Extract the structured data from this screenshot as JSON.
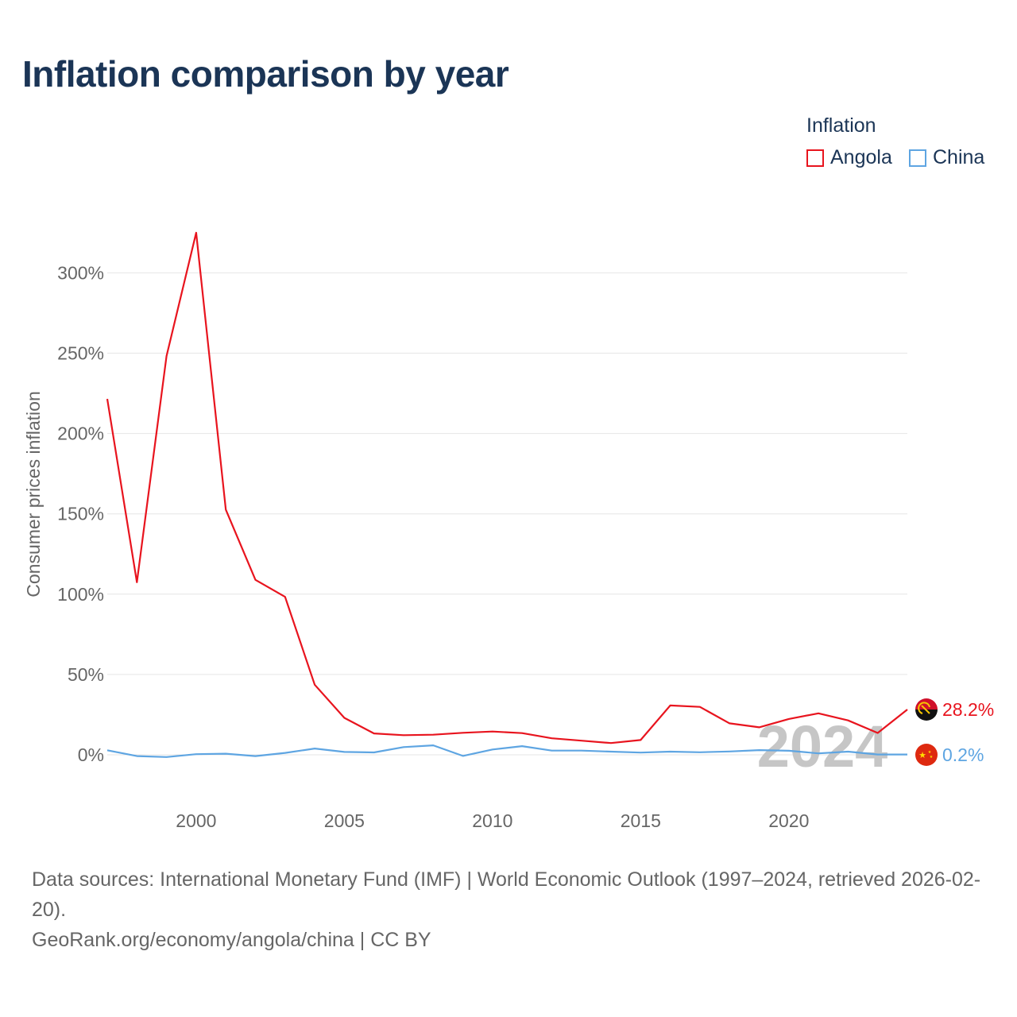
{
  "title": "Inflation comparison by year",
  "legend": {
    "title": "Inflation",
    "items": [
      {
        "label": "Angola",
        "color": "#e8141e"
      },
      {
        "label": "China",
        "color": "#5ea5e2"
      }
    ]
  },
  "footer": {
    "sources": "Data sources: International Monetary Fund (IMF) | World Economic Outlook (1997–2024, retrieved 2026-02-20).",
    "credit": "GeoRank.org/economy/angola/china | CC BY"
  },
  "chart_data": {
    "type": "line",
    "ylabel": "Consumer prices inflation",
    "xlabel": "",
    "year_watermark": "2024",
    "xlim": [
      1997,
      2024
    ],
    "ylim": [
      -25,
      325
    ],
    "x_ticks": [
      2000,
      2005,
      2010,
      2015,
      2020
    ],
    "y_ticks": [
      0,
      50,
      100,
      150,
      200,
      250,
      300
    ],
    "y_tick_labels": [
      "0%",
      "50%",
      "100%",
      "150%",
      "200%",
      "250%",
      "300%"
    ],
    "grid": true,
    "x": [
      1997,
      1998,
      1999,
      2000,
      2001,
      2002,
      2003,
      2004,
      2005,
      2006,
      2007,
      2008,
      2009,
      2010,
      2011,
      2012,
      2013,
      2014,
      2015,
      2016,
      2017,
      2018,
      2019,
      2020,
      2021,
      2022,
      2023,
      2024
    ],
    "series": [
      {
        "name": "Angola",
        "color": "#e8141e",
        "end_label": "28.2%",
        "flag": "angola-flag",
        "values": [
          221.5,
          107.4,
          248.2,
          325.0,
          152.6,
          108.9,
          98.3,
          43.6,
          23.0,
          13.3,
          12.2,
          12.5,
          13.7,
          14.5,
          13.5,
          10.3,
          8.8,
          7.3,
          9.2,
          30.7,
          29.8,
          19.6,
          17.1,
          22.3,
          25.8,
          21.4,
          13.6,
          28.2
        ]
      },
      {
        "name": "China",
        "color": "#5ea5e2",
        "end_label": "0.2%",
        "flag": "china-flag",
        "values": [
          2.8,
          -0.8,
          -1.4,
          0.4,
          0.7,
          -0.8,
          1.2,
          3.9,
          1.8,
          1.5,
          4.8,
          5.9,
          -0.7,
          3.3,
          5.4,
          2.6,
          2.6,
          2.0,
          1.4,
          2.0,
          1.6,
          2.1,
          2.9,
          2.5,
          0.9,
          2.0,
          0.2,
          0.2
        ]
      }
    ]
  }
}
